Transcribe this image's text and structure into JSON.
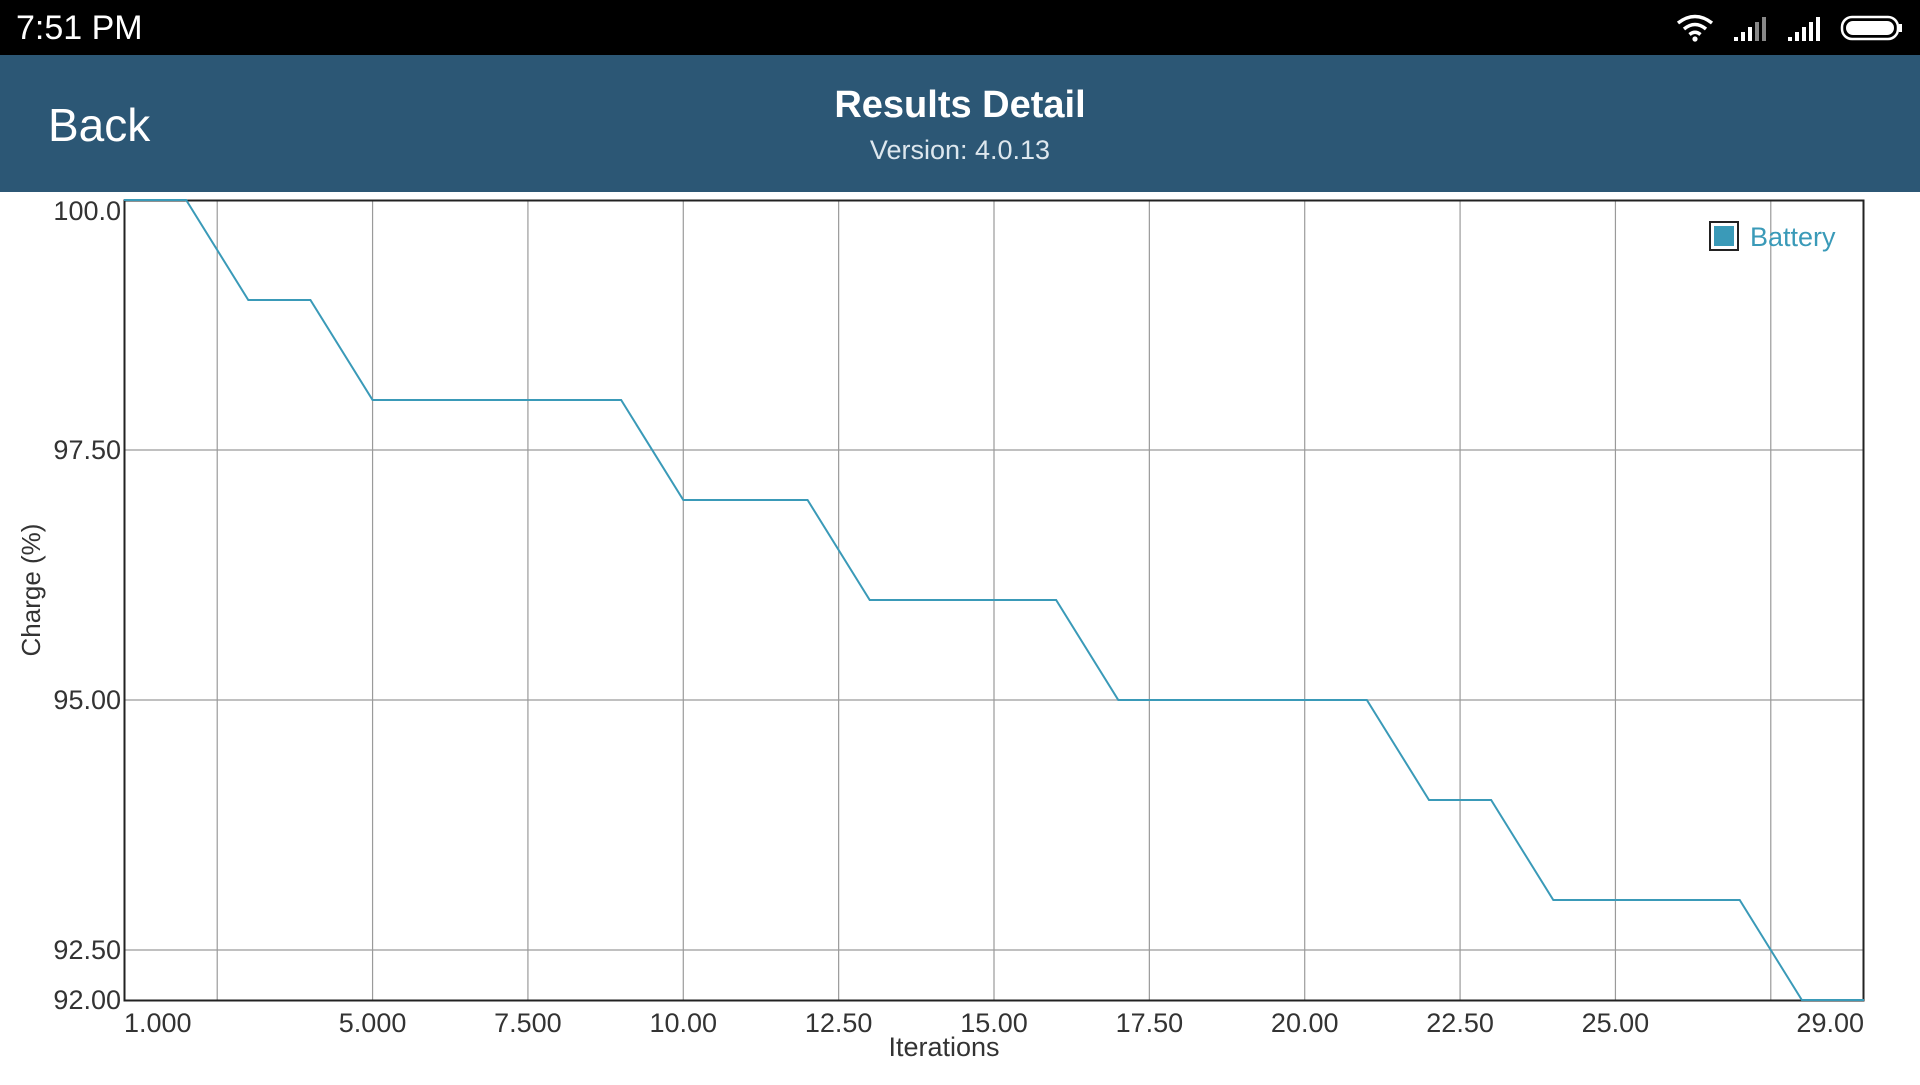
{
  "status_bar": {
    "time": "7:51 PM",
    "icons": [
      "wifi-icon",
      "signal-sim1-icon",
      "signal-sim2-icon",
      "battery-icon"
    ]
  },
  "header": {
    "back_label": "Back",
    "title": "Results Detail",
    "subtitle": "Version: 4.0.13",
    "background": "#2c5775"
  },
  "chart_data": {
    "type": "line",
    "title": "",
    "xlabel": "Iterations",
    "ylabel": "Charge (%)",
    "xlim": [
      1.0,
      29.0
    ],
    "ylim": [
      92.0,
      100.0
    ],
    "x_ticks": [
      {
        "value": 1.0,
        "label": "1.000"
      },
      {
        "value": 5.0,
        "label": "5.000"
      },
      {
        "value": 7.5,
        "label": "7.500"
      },
      {
        "value": 10.0,
        "label": "10.00"
      },
      {
        "value": 12.5,
        "label": "12.50"
      },
      {
        "value": 15.0,
        "label": "15.00"
      },
      {
        "value": 17.5,
        "label": "17.50"
      },
      {
        "value": 20.0,
        "label": "20.00"
      },
      {
        "value": 22.5,
        "label": "22.50"
      },
      {
        "value": 25.0,
        "label": "25.00"
      },
      {
        "value": 29.0,
        "label": "29.00"
      }
    ],
    "x_gridlines": [
      2.5,
      5.0,
      7.5,
      10.0,
      12.5,
      15.0,
      17.5,
      20.0,
      22.5,
      25.0,
      27.5
    ],
    "y_ticks": [
      {
        "value": 100.0,
        "label": "100.0"
      },
      {
        "value": 97.5,
        "label": "97.50"
      },
      {
        "value": 95.0,
        "label": "95.00"
      },
      {
        "value": 92.5,
        "label": "92.50"
      },
      {
        "value": 92.0,
        "label": "92.00"
      }
    ],
    "y_gridlines": [
      97.5,
      95.0,
      92.5
    ],
    "grid": true,
    "legend_position": "top-right",
    "series": [
      {
        "name": "Battery",
        "color": "#3a9ab8",
        "x": [
          1,
          2,
          3,
          4,
          5,
          6,
          7,
          8,
          9,
          10,
          11,
          12,
          13,
          14,
          15,
          16,
          17,
          18,
          19,
          20,
          21,
          22,
          23,
          24,
          25,
          26,
          27,
          28,
          29
        ],
        "y": [
          100,
          100,
          99,
          99,
          98,
          98,
          98,
          98,
          98,
          97,
          97,
          97,
          96,
          96,
          96,
          96,
          95,
          95,
          95,
          95,
          95,
          94,
          94,
          93,
          93,
          93,
          93,
          92,
          92
        ]
      }
    ]
  }
}
